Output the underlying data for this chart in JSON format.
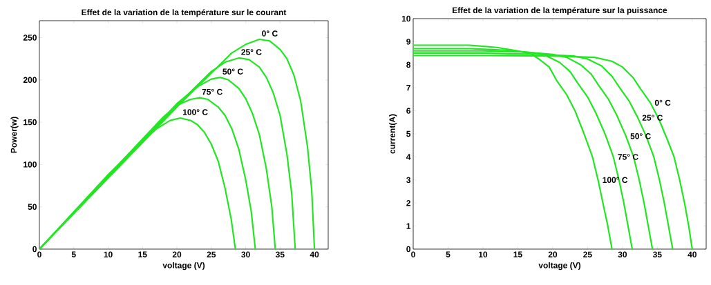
{
  "chart_data": [
    {
      "type": "line",
      "title": "Effet de la variation de la température sur le courant",
      "xlabel": "voltage (V)",
      "ylabel": "Power(w)",
      "xlim": [
        0,
        42
      ],
      "ylim": [
        0,
        270
      ],
      "xticks": [
        0,
        5,
        10,
        15,
        20,
        25,
        30,
        35,
        40
      ],
      "yticks": [
        0,
        50,
        100,
        150,
        200,
        250
      ],
      "series": [
        {
          "name": "0° C",
          "color": "#22e622",
          "x": [
            0,
            10,
            20,
            25,
            28,
            30,
            32,
            33.5,
            35,
            36,
            37,
            38,
            39,
            39.6,
            40
          ],
          "values": [
            0,
            84,
            168,
            208,
            232,
            242,
            248,
            246,
            236,
            225,
            206,
            175,
            120,
            70,
            0
          ]
        },
        {
          "name": "25° C",
          "color": "#22e622",
          "x": [
            0,
            10,
            20,
            25,
            27,
            29,
            30.5,
            32,
            33,
            34,
            35,
            36,
            36.7,
            37.2
          ],
          "values": [
            0,
            85,
            170,
            210,
            221,
            226,
            224,
            215,
            203,
            185,
            158,
            112,
            65,
            0
          ]
        },
        {
          "name": "50° C",
          "color": "#22e622",
          "x": [
            0,
            10,
            20,
            23,
            25,
            26.3,
            27.5,
            29,
            30,
            31,
            32,
            33,
            33.8,
            34.3
          ],
          "values": [
            0,
            86,
            172,
            192,
            201,
            203,
            200,
            190,
            178,
            160,
            135,
            95,
            50,
            0
          ]
        },
        {
          "name": "75° C",
          "color": "#22e622",
          "x": [
            0,
            10,
            18,
            20,
            22,
            23.3,
            24.5,
            26,
            27,
            28,
            29,
            30,
            30.8,
            31.4
          ],
          "values": [
            0,
            87,
            156,
            170,
            177,
            179,
            177,
            168,
            158,
            142,
            118,
            82,
            45,
            0
          ]
        },
        {
          "name": "100° C",
          "color": "#22e622",
          "x": [
            0,
            10,
            15,
            17,
            19,
            20.5,
            22,
            23,
            24,
            25,
            26,
            27,
            27.9,
            28.5
          ],
          "values": [
            0,
            88,
            128,
            142,
            152,
            155,
            152,
            147,
            138,
            124,
            104,
            72,
            35,
            0
          ]
        }
      ]
    },
    {
      "type": "line",
      "title": "Effet de la variation de la température sur la puissance",
      "xlabel": "voltage (V)",
      "ylabel": "current(A)",
      "xlim": [
        0,
        42
      ],
      "ylim": [
        0,
        10
      ],
      "xticks": [
        0,
        5,
        10,
        15,
        20,
        25,
        30,
        35,
        40
      ],
      "yticks": [
        0,
        1,
        2,
        3,
        4,
        5,
        6,
        7,
        8,
        9,
        10
      ],
      "series": [
        {
          "name": "0° C",
          "color": "#22e622",
          "x": [
            0,
            10,
            20,
            26,
            28.5,
            30,
            31.5,
            32.6,
            34,
            35.2,
            36.3,
            37.4,
            38.2,
            38.9,
            39.5,
            40
          ],
          "values": [
            8.4,
            8.4,
            8.38,
            8.32,
            8.15,
            7.9,
            7.45,
            6.95,
            6.35,
            5.65,
            4.85,
            4.0,
            3.0,
            2.0,
            1.0,
            0
          ]
        },
        {
          "name": "25° C",
          "color": "#22e622",
          "x": [
            0,
            10,
            18,
            23,
            25,
            27,
            28.5,
            29.6,
            31,
            32.2,
            33.4,
            34.5,
            35.3,
            36.0,
            36.6,
            37.2
          ],
          "values": [
            8.5,
            8.5,
            8.45,
            8.38,
            8.25,
            7.95,
            7.5,
            7.0,
            6.4,
            5.7,
            4.9,
            4.0,
            3.0,
            2.0,
            1.0,
            0
          ]
        },
        {
          "name": "50° C",
          "color": "#22e622",
          "x": [
            0,
            10,
            16,
            20,
            22,
            24,
            25.5,
            26.6,
            28,
            29.2,
            30.5,
            31.6,
            32.4,
            33.1,
            33.7,
            34.3
          ],
          "values": [
            8.6,
            8.6,
            8.55,
            8.45,
            8.32,
            8.0,
            7.6,
            7.1,
            6.5,
            5.8,
            4.9,
            4.0,
            3.0,
            2.0,
            1.0,
            0
          ]
        },
        {
          "name": "75° C",
          "color": "#22e622",
          "x": [
            0,
            8,
            14,
            17,
            19,
            21,
            22.5,
            23.6,
            25,
            26.2,
            27.5,
            28.7,
            29.5,
            30.2,
            30.8,
            31.4
          ],
          "values": [
            8.7,
            8.7,
            8.62,
            8.52,
            8.4,
            8.1,
            7.7,
            7.2,
            6.6,
            5.9,
            5.0,
            4.0,
            3.0,
            2.0,
            1.0,
            0
          ]
        },
        {
          "name": "100° C",
          "color": "#22e622",
          "x": [
            0,
            8,
            12,
            15,
            17,
            18,
            19.5,
            20.6,
            22,
            23.2,
            24.5,
            25.7,
            26.5,
            27.2,
            27.9,
            28.5
          ],
          "values": [
            8.85,
            8.85,
            8.75,
            8.6,
            8.45,
            8.25,
            7.9,
            7.3,
            6.7,
            6.0,
            5.0,
            4.0,
            3.0,
            2.0,
            1.0,
            0
          ]
        }
      ]
    }
  ]
}
